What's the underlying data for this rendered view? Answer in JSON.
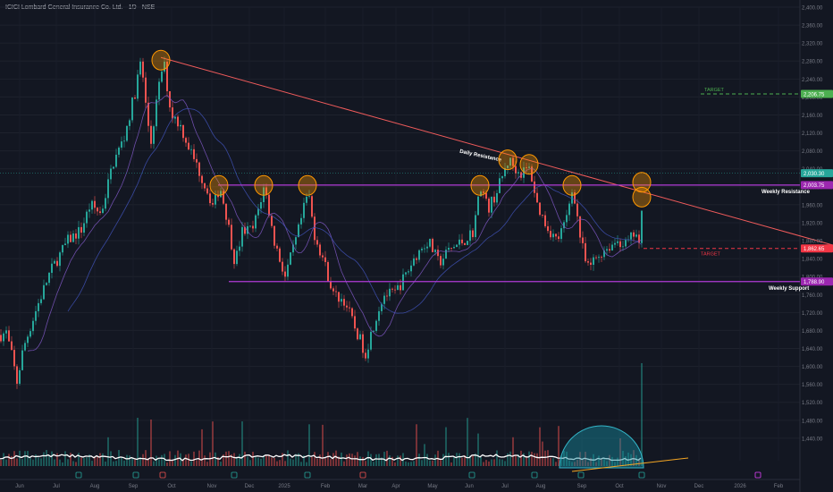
{
  "header": {
    "title": "ICICI Lombard General Insurance Co. Ltd. · 1D · NSE"
  },
  "chart_data": {
    "type": "candlestick",
    "ylim": [
      1390,
      2400
    ],
    "y_ticks": [
      2400,
      2360,
      2320,
      2280,
      2240,
      2200,
      2160,
      2120,
      2080,
      2040,
      2000,
      1960,
      1920,
      1880,
      1840,
      1800,
      1760,
      1720,
      1680,
      1640,
      1600,
      1560,
      1520,
      1480,
      1440
    ],
    "x_ticks": [
      "Jun",
      "Jul",
      "Aug",
      "Sep",
      "Oct",
      "Nov",
      "Dec",
      "2025",
      "Feb",
      "Mar",
      "Apr",
      "May",
      "Jun",
      "Jul",
      "Aug",
      "Sep",
      "Oct",
      "Nov",
      "Dec",
      "2026",
      "Feb"
    ],
    "price_path": [
      {
        "t": 0,
        "p": 1670
      },
      {
        "t": 6,
        "p": 1675
      },
      {
        "t": 12,
        "p": 1625
      },
      {
        "t": 18,
        "p": 1565
      },
      {
        "t": 25,
        "p": 1640
      },
      {
        "t": 40,
        "p": 1730
      },
      {
        "t": 55,
        "p": 1810
      },
      {
        "t": 75,
        "p": 1880
      },
      {
        "t": 90,
        "p": 1905
      },
      {
        "t": 100,
        "p": 1960
      },
      {
        "t": 112,
        "p": 1940
      },
      {
        "t": 125,
        "p": 2050
      },
      {
        "t": 138,
        "p": 2110
      },
      {
        "t": 150,
        "p": 2210
      },
      {
        "t": 157,
        "p": 2285
      },
      {
        "t": 163,
        "p": 2160
      },
      {
        "t": 168,
        "p": 2100
      },
      {
        "t": 175,
        "p": 2200
      },
      {
        "t": 182,
        "p": 2282
      },
      {
        "t": 190,
        "p": 2165
      },
      {
        "t": 200,
        "p": 2140
      },
      {
        "t": 212,
        "p": 2080
      },
      {
        "t": 225,
        "p": 2020
      },
      {
        "t": 238,
        "p": 1955
      },
      {
        "t": 245,
        "p": 2003
      },
      {
        "t": 253,
        "p": 1930
      },
      {
        "t": 262,
        "p": 1830
      },
      {
        "t": 270,
        "p": 1900
      },
      {
        "t": 282,
        "p": 1905
      },
      {
        "t": 295,
        "p": 2003
      },
      {
        "t": 305,
        "p": 1885
      },
      {
        "t": 318,
        "p": 1800
      },
      {
        "t": 330,
        "p": 1880
      },
      {
        "t": 344,
        "p": 1990
      },
      {
        "t": 350,
        "p": 1900
      },
      {
        "t": 362,
        "p": 1830
      },
      {
        "t": 372,
        "p": 1760
      },
      {
        "t": 385,
        "p": 1745
      },
      {
        "t": 395,
        "p": 1690
      },
      {
        "t": 408,
        "p": 1630
      },
      {
        "t": 418,
        "p": 1700
      },
      {
        "t": 428,
        "p": 1760
      },
      {
        "t": 440,
        "p": 1760
      },
      {
        "t": 452,
        "p": 1800
      },
      {
        "t": 465,
        "p": 1850
      },
      {
        "t": 478,
        "p": 1880
      },
      {
        "t": 490,
        "p": 1830
      },
      {
        "t": 502,
        "p": 1860
      },
      {
        "t": 518,
        "p": 1880
      },
      {
        "t": 528,
        "p": 1900
      },
      {
        "t": 537,
        "p": 2003
      },
      {
        "t": 545,
        "p": 1950
      },
      {
        "t": 555,
        "p": 1990
      },
      {
        "t": 568,
        "p": 2060
      },
      {
        "t": 580,
        "p": 2030
      },
      {
        "t": 592,
        "p": 2040
      },
      {
        "t": 600,
        "p": 1960
      },
      {
        "t": 610,
        "p": 1915
      },
      {
        "t": 622,
        "p": 1880
      },
      {
        "t": 632,
        "p": 1920
      },
      {
        "t": 640,
        "p": 2003
      },
      {
        "t": 648,
        "p": 1890
      },
      {
        "t": 656,
        "p": 1815
      },
      {
        "t": 665,
        "p": 1840
      },
      {
        "t": 675,
        "p": 1860
      },
      {
        "t": 690,
        "p": 1880
      },
      {
        "t": 700,
        "p": 1870
      },
      {
        "t": 710,
        "p": 1900
      },
      {
        "t": 716,
        "p": 1845
      },
      {
        "t": 718,
        "p": 2030
      }
    ],
    "volume_note": "volume bars with moving average line; spike at latest bar",
    "lines": {
      "daily_resistance": {
        "label": "Daily Resistance",
        "from": {
          "t": 180,
          "p": 2288
        },
        "to": {
          "t": 932,
          "p": 1870
        },
        "color": "#f05b5b"
      },
      "weekly_resistance": {
        "label": "Weekly Resistance",
        "value": 2003.75,
        "color": "#b13bd6"
      },
      "weekly_support": {
        "label": "Weekly Support",
        "value": 1788.9,
        "color": "#b13bd6"
      },
      "target_up": {
        "label": "TARGET",
        "value": 2206.75,
        "color": "#4caf50"
      },
      "target_down": {
        "label": "TARGET",
        "value": 1862.65,
        "color": "#f23645"
      }
    },
    "price_labels": [
      {
        "value": 2206.75,
        "text": "2,206.75",
        "color": "#4caf50"
      },
      {
        "value": 2030.3,
        "text": "2,030.30",
        "color": "#26a69a"
      },
      {
        "value": 2003.75,
        "text": "2,003.75",
        "color": "#9c27b0"
      },
      {
        "value": 1862.65,
        "text": "1,862.65",
        "color": "#f23645"
      },
      {
        "value": 1788.9,
        "text": "1,788.90",
        "color": "#9c27b0"
      }
    ],
    "circles_at": [
      {
        "t": 180,
        "p": 2282
      },
      {
        "t": 245,
        "p": 2003
      },
      {
        "t": 295,
        "p": 2003
      },
      {
        "t": 344,
        "p": 2003
      },
      {
        "t": 537,
        "p": 2003
      },
      {
        "t": 568,
        "p": 2060
      },
      {
        "t": 592,
        "p": 2050
      },
      {
        "t": 640,
        "p": 2003
      },
      {
        "t": 718,
        "p": 2010
      },
      {
        "t": 718,
        "p": 1977
      }
    ]
  }
}
